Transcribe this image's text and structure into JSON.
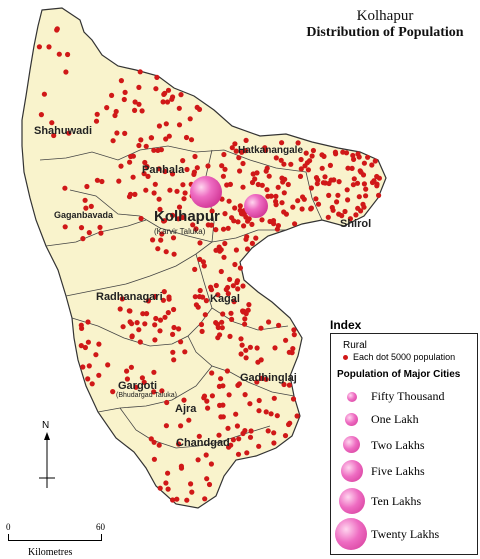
{
  "map": {
    "title": "Kolhapur",
    "subtitle": "Distribution of Population",
    "land_color": "#f9f3cc",
    "dot_color": "#d01818",
    "bubble_color": "#e853b4"
  },
  "talukas": [
    {
      "id": "shahuwadi",
      "name": "Shahuwadi"
    },
    {
      "id": "panhala",
      "name": "Panhala"
    },
    {
      "id": "hatkanangale",
      "name": "Hatkanangale"
    },
    {
      "id": "shirol",
      "name": "Shirol"
    },
    {
      "id": "gaganbavada",
      "name": "Gaganbavada"
    },
    {
      "id": "kolhapur",
      "name": "Kolhapur"
    },
    {
      "id": "karvir",
      "name": "(Karvir Taluka)"
    },
    {
      "id": "radhanagari",
      "name": "Radhanagari"
    },
    {
      "id": "kagal",
      "name": "Kagal"
    },
    {
      "id": "gargoti",
      "name": "Gargoti"
    },
    {
      "id": "bhudargad",
      "name": "(Bhudargad Taluka)"
    },
    {
      "id": "gadhinglaj",
      "name": "Gadhinglaj"
    },
    {
      "id": "ajra",
      "name": "Ajra"
    },
    {
      "id": "chandgad",
      "name": "Chandgad"
    }
  ],
  "legend": {
    "title": "Index",
    "rural_label": "Rural",
    "dot_label": "Each dot 5000 population",
    "cities_title": "Population of Major Cities",
    "sizes": [
      {
        "label": "Fifty Thousand"
      },
      {
        "label": "One Lakh"
      },
      {
        "label": "Two Lakhs"
      },
      {
        "label": "Five Lakhs"
      },
      {
        "label": "Ten Lakhs"
      },
      {
        "label": "Twenty Lakhs"
      }
    ]
  },
  "compass": {
    "label": "N"
  },
  "scale": {
    "start": "0",
    "end": "60",
    "unit": "Kilometres"
  }
}
